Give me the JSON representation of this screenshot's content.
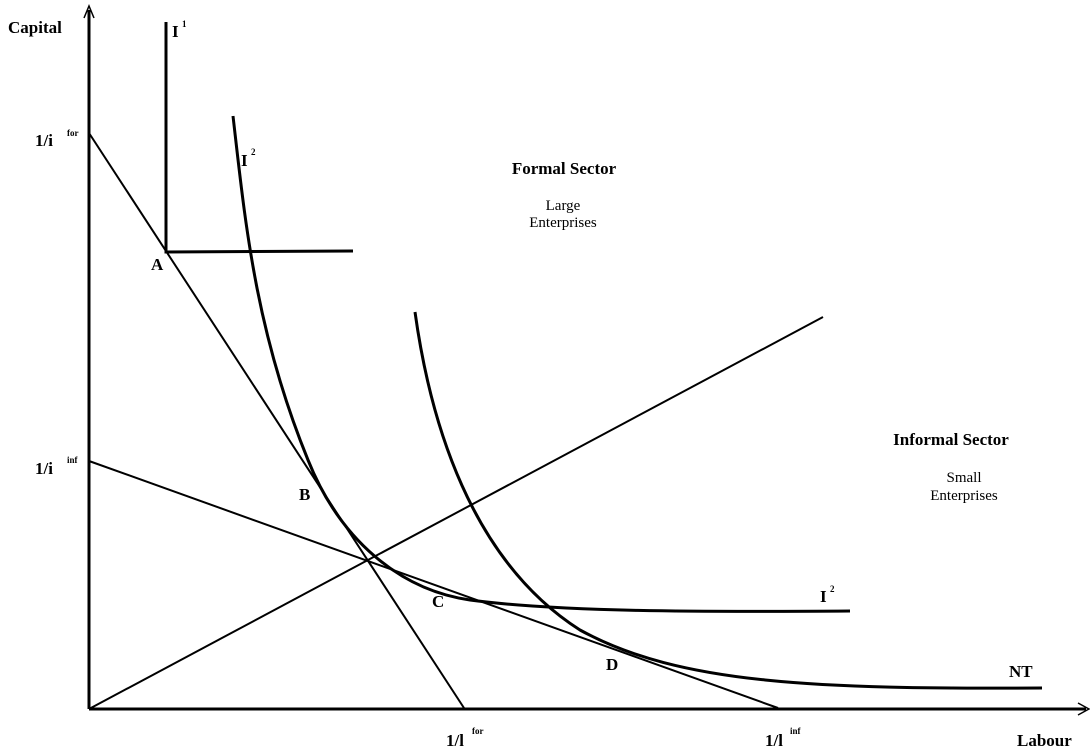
{
  "axes": {
    "y_label": "Capital",
    "x_label": "Labour"
  },
  "intercepts": {
    "y_formal": {
      "base": "1/i",
      "sup": "for"
    },
    "y_informal": {
      "base": "1/i",
      "sup": "inf"
    },
    "x_formal": {
      "base": "1/l",
      "sup": "for"
    },
    "x_informal": {
      "base": "1/l",
      "sup": "inf"
    }
  },
  "isoquants": {
    "i1": {
      "base": "I",
      "sup": "1"
    },
    "i2_top": {
      "base": "I",
      "sup": "2"
    },
    "i2_right": {
      "base": "I",
      "sup": "2"
    },
    "nt": "NT"
  },
  "points": {
    "a": "A",
    "b": "B",
    "c": "C",
    "d": "D"
  },
  "regions": {
    "formal": {
      "title": "Formal Sector",
      "line1": "Large",
      "line2": "Enterprises"
    },
    "informal": {
      "title": "Informal Sector",
      "line1": "Small",
      "line2": "Enterprises"
    }
  }
}
